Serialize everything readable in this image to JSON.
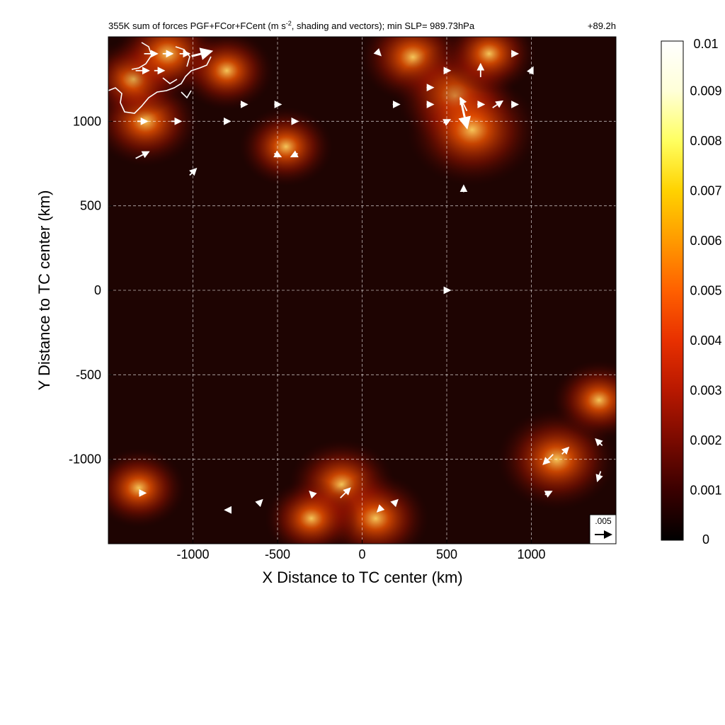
{
  "chart_data": {
    "type": "heatmap",
    "title_main": "355K sum of forces PGF+FCor+FCent (m s",
    "title_sup": "-2",
    "title_rest": ", shading and vectors); min SLP= 989.73hPa",
    "time_label": "+89.2h",
    "xlabel": "X Distance to TC center (km)",
    "ylabel": "Y Distance to TC center (km)",
    "xlim": [
      -1500,
      1500
    ],
    "ylim": [
      -1500,
      1500
    ],
    "xticks": [
      -1000,
      -500,
      0,
      500,
      1000
    ],
    "xtick_labels": [
      "-1000",
      "-500",
      "0",
      "500",
      "1000"
    ],
    "yticks": [
      1000,
      500,
      0,
      -500,
      -1000
    ],
    "ytick_labels": [
      "1000",
      "500",
      "0",
      "-500",
      "-1000"
    ],
    "grid": true,
    "colorbar": {
      "range": [
        0,
        0.01
      ],
      "labels": [
        "0.01",
        "0.009",
        "0.008",
        "0.007",
        "0.006",
        "0.005",
        "0.004",
        "0.003",
        "0.002",
        "0.001",
        "0"
      ],
      "colors": [
        "#000000",
        "#3a0000",
        "#7a0a00",
        "#b81800",
        "#e83000",
        "#ff6000",
        "#ff9a00",
        "#ffd200",
        "#ffff60",
        "#ffffd8",
        "#ffffff"
      ]
    },
    "reference_vector": {
      "label": ".005",
      "magnitude": 0.005
    },
    "hotspots": [
      {
        "x": -1280,
        "y": 1000,
        "v": 0.005
      },
      {
        "x": -1350,
        "y": 1250,
        "v": 0.004
      },
      {
        "x": -1150,
        "y": 1400,
        "v": 0.005
      },
      {
        "x": -800,
        "y": 1300,
        "v": 0.004
      },
      {
        "x": -450,
        "y": 850,
        "v": 0.004
      },
      {
        "x": 300,
        "y": 1380,
        "v": 0.005
      },
      {
        "x": 550,
        "y": 1150,
        "v": 0.006
      },
      {
        "x": 650,
        "y": 950,
        "v": 0.007
      },
      {
        "x": 750,
        "y": 1400,
        "v": 0.004
      },
      {
        "x": 1150,
        "y": -1000,
        "v": 0.006
      },
      {
        "x": 1400,
        "y": -650,
        "v": 0.004
      },
      {
        "x": -120,
        "y": -1150,
        "v": 0.005
      },
      {
        "x": 80,
        "y": -1350,
        "v": 0.005
      },
      {
        "x": -300,
        "y": -1350,
        "v": 0.004
      },
      {
        "x": -1320,
        "y": -1170,
        "v": 0.004
      }
    ],
    "vectors": [
      {
        "x": -1250,
        "y": 1400,
        "u": 0.004,
        "v": 0.0
      },
      {
        "x": -1150,
        "y": 1400,
        "u": 0.003,
        "v": 0.0
      },
      {
        "x": -1050,
        "y": 1400,
        "u": 0.003,
        "v": 0.0
      },
      {
        "x": -950,
        "y": 1400,
        "u": 0.006,
        "v": 0.0015
      },
      {
        "x": -1300,
        "y": 1300,
        "u": 0.004,
        "v": 0.0
      },
      {
        "x": -1200,
        "y": 1300,
        "u": 0.003,
        "v": 0.0
      },
      {
        "x": -1300,
        "y": 1000,
        "u": 0.003,
        "v": 0.0
      },
      {
        "x": -1100,
        "y": 1000,
        "u": 0.003,
        "v": 0.0
      },
      {
        "x": -1300,
        "y": 800,
        "u": 0.004,
        "v": 0.002
      },
      {
        "x": -1000,
        "y": 700,
        "u": 0.002,
        "v": 0.002
      },
      {
        "x": -800,
        "y": 1000,
        "u": 0.002,
        "v": 0.0
      },
      {
        "x": -700,
        "y": 1100,
        "u": 0.002,
        "v": 0.0
      },
      {
        "x": -500,
        "y": 1100,
        "u": 0.002,
        "v": 0.0
      },
      {
        "x": -400,
        "y": 1000,
        "u": 0.002,
        "v": 0.0
      },
      {
        "x": -500,
        "y": 800,
        "u": 0.002,
        "v": -0.001
      },
      {
        "x": -400,
        "y": 800,
        "u": -0.002,
        "v": -0.001
      },
      {
        "x": 100,
        "y": 1400,
        "u": 0.001,
        "v": -0.001
      },
      {
        "x": 200,
        "y": 1100,
        "u": 0.002,
        "v": 0.0
      },
      {
        "x": 400,
        "y": 1100,
        "u": 0.002,
        "v": 0.0
      },
      {
        "x": 500,
        "y": 1000,
        "u": 0.002,
        "v": 0.001
      },
      {
        "x": 600,
        "y": 1100,
        "u": -0.002,
        "v": 0.004
      },
      {
        "x": 600,
        "y": 1050,
        "u": 0.002,
        "v": -0.009
      },
      {
        "x": 700,
        "y": 1100,
        "u": 0.002,
        "v": 0.0
      },
      {
        "x": 800,
        "y": 1100,
        "u": 0.003,
        "v": 0.002
      },
      {
        "x": 700,
        "y": 1300,
        "u": 0.0,
        "v": 0.004
      },
      {
        "x": 900,
        "y": 1100,
        "u": 0.002,
        "v": 0.0
      },
      {
        "x": 600,
        "y": 600,
        "u": 0.0,
        "v": 0.002
      },
      {
        "x": 400,
        "y": 1200,
        "u": 0.002,
        "v": 0.0
      },
      {
        "x": 500,
        "y": 1300,
        "u": 0.002,
        "v": 0.0
      },
      {
        "x": 900,
        "y": 1400,
        "u": 0.002,
        "v": 0.0
      },
      {
        "x": 1000,
        "y": 1300,
        "u": 0.001,
        "v": 0.002
      },
      {
        "x": 500,
        "y": 0,
        "u": 0.002,
        "v": 0.0
      },
      {
        "x": 1100,
        "y": -1000,
        "u": -0.003,
        "v": -0.003
      },
      {
        "x": 1200,
        "y": -950,
        "u": 0.002,
        "v": 0.002
      },
      {
        "x": 1400,
        "y": -900,
        "u": -0.002,
        "v": 0.002
      },
      {
        "x": 1400,
        "y": -1100,
        "u": -0.001,
        "v": -0.003
      },
      {
        "x": 1100,
        "y": -1200,
        "u": 0.002,
        "v": 0.001
      },
      {
        "x": -1300,
        "y": -1200,
        "u": 0.002,
        "v": 0.0
      },
      {
        "x": -100,
        "y": -1200,
        "u": 0.003,
        "v": 0.003
      },
      {
        "x": -300,
        "y": -1200,
        "u": -0.001,
        "v": 0.001
      },
      {
        "x": 100,
        "y": -1300,
        "u": -0.001,
        "v": -0.001
      },
      {
        "x": 200,
        "y": -1250,
        "u": 0.001,
        "v": 0.001
      },
      {
        "x": -800,
        "y": -1300,
        "u": -0.001,
        "v": 0.0
      },
      {
        "x": -600,
        "y": -1250,
        "u": 0.001,
        "v": 0.001
      }
    ]
  }
}
